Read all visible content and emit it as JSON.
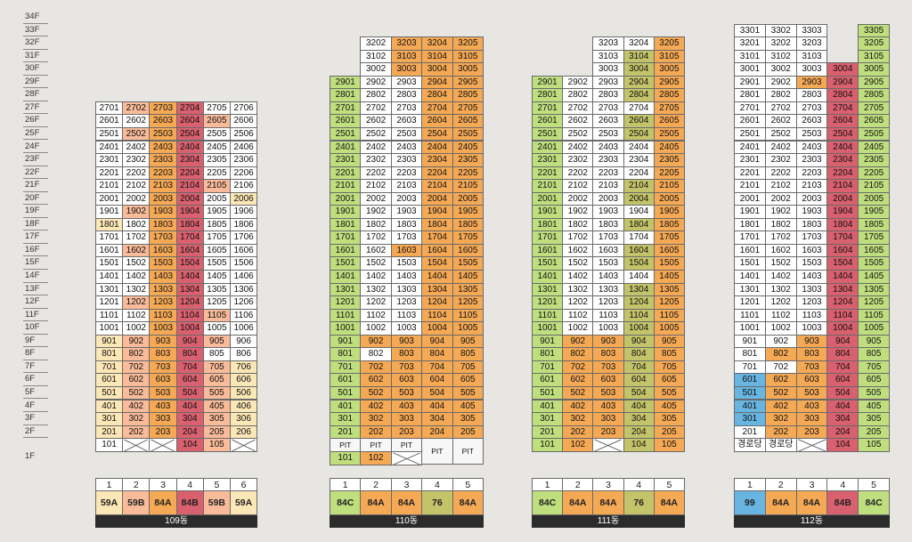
{
  "floors": [
    "34F",
    "33F",
    "32F",
    "31F",
    "30F",
    "29F",
    "28F",
    "27F",
    "26F",
    "25F",
    "24F",
    "23F",
    "22F",
    "21F",
    "20F",
    "19F",
    "18F",
    "17F",
    "16F",
    "15F",
    "14F",
    "13F",
    "12F",
    "11F",
    "10F",
    "9F",
    "8F",
    "7F",
    "6F",
    "5F",
    "4F",
    "3F",
    "2F",
    "1F"
  ],
  "colors": {
    "W": "#ffffff",
    "Y": "#fce7b6",
    "P": "#f9bb9a",
    "O": "#f5a955",
    "R": "#d9606e",
    "G": "#bfdf7f",
    "K": "#c3c46a",
    "B": "#67b5e0",
    "C": "#f7f7f7"
  },
  "buildings": [
    {
      "name": "109동",
      "lines": [
        {
          "num": "1",
          "type": "59A",
          "color": "Y"
        },
        {
          "num": "2",
          "type": "59B",
          "color": "P"
        },
        {
          "num": "3",
          "type": "84A",
          "color": "O"
        },
        {
          "num": "4",
          "type": "84B",
          "color": "R"
        },
        {
          "num": "5",
          "type": "59B",
          "color": "P"
        },
        {
          "num": "6",
          "type": "59A",
          "color": "Y"
        }
      ],
      "floor_rows": [
        {
          "f": 27,
          "c": "WPORWW"
        },
        {
          "f": 26,
          "c": "WWORPW"
        },
        {
          "f": 25,
          "c": "WPORWW"
        },
        {
          "f": 24,
          "c": "WWORWW"
        },
        {
          "f": 23,
          "c": "WWORWW"
        },
        {
          "f": 22,
          "c": "WWORWW"
        },
        {
          "f": 21,
          "c": "WWORPW"
        },
        {
          "f": 20,
          "c": "WWORWY"
        },
        {
          "f": 19,
          "c": "WPORWW"
        },
        {
          "f": 18,
          "c": "YWORWW"
        },
        {
          "f": 17,
          "c": "WWORWW"
        },
        {
          "f": 16,
          "c": "WPORWW"
        },
        {
          "f": 15,
          "c": "WWORWW"
        },
        {
          "f": 14,
          "c": "WWORWW"
        },
        {
          "f": 13,
          "c": "WWORWW"
        },
        {
          "f": 12,
          "c": "WPORWW"
        },
        {
          "f": 11,
          "c": "WWORPW"
        },
        {
          "f": 10,
          "c": "WWORWW"
        },
        {
          "f": 9,
          "c": "YPORPW"
        },
        {
          "f": 8,
          "c": "YPORWW"
        },
        {
          "f": 7,
          "c": "YPORPY"
        },
        {
          "f": 6,
          "c": "YPORPY"
        },
        {
          "f": 5,
          "c": "YPORPY"
        },
        {
          "f": 4,
          "c": "YPORPY"
        },
        {
          "f": 3,
          "c": "YPORPY"
        },
        {
          "f": 2,
          "c": "YPORPY"
        }
      ],
      "first_floor": [
        {
          "t": "101",
          "c": "W"
        },
        {
          "t": "X"
        },
        {
          "t": "X"
        },
        {
          "t": "104",
          "c": "R"
        },
        {
          "t": "105",
          "c": "P"
        },
        {
          "t": "X"
        }
      ]
    },
    {
      "name": "110동",
      "lines": [
        {
          "num": "1",
          "type": "84C",
          "color": "G"
        },
        {
          "num": "2",
          "type": "84A",
          "color": "O"
        },
        {
          "num": "3",
          "type": "84A",
          "color": "O"
        },
        {
          "num": "4",
          "type": "76",
          "color": "K"
        },
        {
          "num": "5",
          "type": "84A",
          "color": "O"
        }
      ],
      "floor_rows": [
        {
          "f": 32,
          "c": "-WOOO"
        },
        {
          "f": 31,
          "c": "-WOOO"
        },
        {
          "f": 30,
          "c": "-WOOO"
        },
        {
          "f": 29,
          "c": "GWWOO"
        },
        {
          "f": 28,
          "c": "GWWOO"
        },
        {
          "f": 27,
          "c": "GWWOO"
        },
        {
          "f": 26,
          "c": "GWWOO"
        },
        {
          "f": 25,
          "c": "GWWOO"
        },
        {
          "f": 24,
          "c": "GWWOO"
        },
        {
          "f": 23,
          "c": "GWWOO"
        },
        {
          "f": 22,
          "c": "GWWOO"
        },
        {
          "f": 21,
          "c": "GWWOO"
        },
        {
          "f": 20,
          "c": "GWWOO"
        },
        {
          "f": 19,
          "c": "GWWOO"
        },
        {
          "f": 18,
          "c": "GWWOO"
        },
        {
          "f": 17,
          "c": "GWWOO"
        },
        {
          "f": 16,
          "c": "GWOOO"
        },
        {
          "f": 15,
          "c": "GWWOO"
        },
        {
          "f": 14,
          "c": "GWWOO"
        },
        {
          "f": 13,
          "c": "GWWOO"
        },
        {
          "f": 12,
          "c": "GWWOO"
        },
        {
          "f": 11,
          "c": "GWWOO"
        },
        {
          "f": 10,
          "c": "GWWOO"
        },
        {
          "f": 9,
          "c": "GOOOO"
        },
        {
          "f": 8,
          "c": "GWOOO"
        },
        {
          "f": 7,
          "c": "GOOOO"
        },
        {
          "f": 6,
          "c": "GOOOO"
        },
        {
          "f": 5,
          "c": "GOOOO"
        },
        {
          "f": 4,
          "c": "GOOOO"
        },
        {
          "f": 3,
          "c": "GOOOO"
        },
        {
          "f": 2,
          "c": "GOOOO"
        }
      ],
      "pit": [
        "PIT",
        "PIT",
        "PIT",
        "PIT",
        "PIT"
      ],
      "first_floor": [
        {
          "t": "101",
          "c": "G"
        },
        {
          "t": "102",
          "c": "O"
        },
        {
          "t": "X"
        }
      ]
    },
    {
      "name": "111동",
      "lines": [
        {
          "num": "1",
          "type": "84C",
          "color": "G"
        },
        {
          "num": "2",
          "type": "84A",
          "color": "O"
        },
        {
          "num": "3",
          "type": "84A",
          "color": "O"
        },
        {
          "num": "4",
          "type": "76",
          "color": "K"
        },
        {
          "num": "5",
          "type": "84A",
          "color": "O"
        }
      ],
      "floor_rows": [
        {
          "f": 32,
          "c": "--WWO"
        },
        {
          "f": 31,
          "c": "--WKO"
        },
        {
          "f": 30,
          "c": "--WKO"
        },
        {
          "f": 29,
          "c": "GWWKO"
        },
        {
          "f": 28,
          "c": "GWWKO"
        },
        {
          "f": 27,
          "c": "GWWWO"
        },
        {
          "f": 26,
          "c": "GWWKO"
        },
        {
          "f": 25,
          "c": "GWWKO"
        },
        {
          "f": 24,
          "c": "GWWWO"
        },
        {
          "f": 23,
          "c": "GWWWO"
        },
        {
          "f": 22,
          "c": "GWWWO"
        },
        {
          "f": 21,
          "c": "GWWKO"
        },
        {
          "f": 20,
          "c": "GWWKO"
        },
        {
          "f": 19,
          "c": "GWWWO"
        },
        {
          "f": 18,
          "c": "GWWKO"
        },
        {
          "f": 17,
          "c": "GWWWO"
        },
        {
          "f": 16,
          "c": "GWWKO"
        },
        {
          "f": 15,
          "c": "GWWKO"
        },
        {
          "f": 14,
          "c": "GWWWO"
        },
        {
          "f": 13,
          "c": "GWWKO"
        },
        {
          "f": 12,
          "c": "GWWKO"
        },
        {
          "f": 11,
          "c": "GWWKO"
        },
        {
          "f": 10,
          "c": "GWWKO"
        },
        {
          "f": 9,
          "c": "GOOKO"
        },
        {
          "f": 8,
          "c": "GOOKO"
        },
        {
          "f": 7,
          "c": "GOOKO"
        },
        {
          "f": 6,
          "c": "GOOKO"
        },
        {
          "f": 5,
          "c": "GOOKO"
        },
        {
          "f": 4,
          "c": "GOOKO"
        },
        {
          "f": 3,
          "c": "GOOKO"
        },
        {
          "f": 2,
          "c": "GOOKO"
        }
      ],
      "first_floor": [
        {
          "t": "101",
          "c": "G"
        },
        {
          "t": "102",
          "c": "O"
        },
        {
          "t": "X"
        },
        {
          "t": "104",
          "c": "K"
        },
        {
          "t": "105",
          "c": "O"
        }
      ]
    },
    {
      "name": "112동",
      "lines": [
        {
          "num": "1",
          "type": "99",
          "color": "B"
        },
        {
          "num": "2",
          "type": "84A",
          "color": "O"
        },
        {
          "num": "3",
          "type": "84A",
          "color": "O"
        },
        {
          "num": "4",
          "type": "84B",
          "color": "R"
        },
        {
          "num": "5",
          "type": "84C",
          "color": "G"
        }
      ],
      "floor_rows": [
        {
          "f": 33,
          "c": "WWW-G"
        },
        {
          "f": 32,
          "c": "WWW-G"
        },
        {
          "f": 31,
          "c": "WWW-G"
        },
        {
          "f": 30,
          "c": "WWWRG"
        },
        {
          "f": 29,
          "c": "WWORG"
        },
        {
          "f": 28,
          "c": "WWWRG"
        },
        {
          "f": 27,
          "c": "WWWRG"
        },
        {
          "f": 26,
          "c": "WWWRG"
        },
        {
          "f": 25,
          "c": "WWWRG"
        },
        {
          "f": 24,
          "c": "WWWRG"
        },
        {
          "f": 23,
          "c": "WWWRG"
        },
        {
          "f": 22,
          "c": "WWWRG"
        },
        {
          "f": 21,
          "c": "WWWRG"
        },
        {
          "f": 20,
          "c": "WWWRG"
        },
        {
          "f": 19,
          "c": "WWWRG"
        },
        {
          "f": 18,
          "c": "WWWRG"
        },
        {
          "f": 17,
          "c": "WWWRG"
        },
        {
          "f": 16,
          "c": "WWWRG"
        },
        {
          "f": 15,
          "c": "WWWRG"
        },
        {
          "f": 14,
          "c": "WWWRG"
        },
        {
          "f": 13,
          "c": "WWWRG"
        },
        {
          "f": 12,
          "c": "WWWRG"
        },
        {
          "f": 11,
          "c": "WWWRG"
        },
        {
          "f": 10,
          "c": "WWWRG"
        },
        {
          "f": 9,
          "c": "WWORG"
        },
        {
          "f": 8,
          "c": "WOORG"
        },
        {
          "f": 7,
          "c": "WWORG"
        },
        {
          "f": 6,
          "c": "BOORG"
        },
        {
          "f": 5,
          "c": "BOORG"
        },
        {
          "f": 4,
          "c": "BOORG"
        },
        {
          "f": 3,
          "c": "BOORG"
        },
        {
          "f": 2,
          "c": "WOORG"
        }
      ],
      "first_floor": [
        {
          "t": "경로당",
          "c": "W"
        },
        {
          "t": "경로당",
          "c": "W"
        },
        {
          "t": "X"
        },
        {
          "t": "104",
          "c": "R"
        },
        {
          "t": "105",
          "c": "G"
        }
      ],
      "extra_top": {
        "f": 33,
        "col": 4,
        "t": "3305"
      }
    }
  ]
}
